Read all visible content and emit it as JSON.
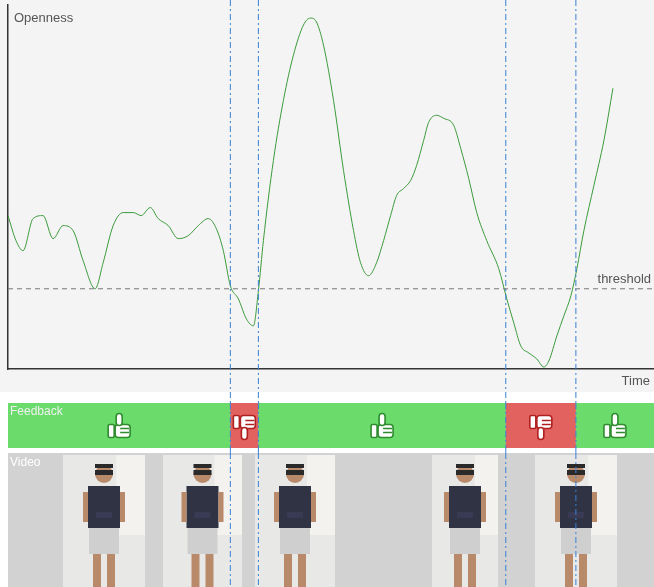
{
  "chart_data": {
    "type": "line",
    "y_label": "Openness",
    "x_label": "Time",
    "x": [
      0,
      8,
      15,
      25,
      35,
      45,
      55,
      65,
      75,
      87,
      95,
      105,
      115,
      125,
      133,
      142,
      150,
      160,
      170,
      180,
      190,
      200,
      208,
      215,
      222,
      230,
      238,
      245,
      250,
      255,
      265,
      275,
      285,
      295,
      302,
      308,
      315,
      325,
      335,
      345,
      352,
      360,
      368,
      375,
      382,
      388,
      395,
      402,
      408,
      415,
      420,
      428,
      435,
      445,
      452,
      460,
      468,
      478,
      490,
      498,
      505,
      512,
      520,
      528,
      535,
      540,
      548,
      555,
      562,
      568,
      575,
      585,
      595,
      604
    ],
    "series": [
      {
        "color": "#3c9b3c",
        "line_style": "solid",
        "values": [
          153,
          128,
          118,
          150,
          153,
          130,
          143,
          138,
          108,
          80,
          106,
          143,
          156,
          156,
          153,
          161,
          150,
          143,
          130,
          133,
          143,
          150,
          140,
          118,
          83,
          70,
          50,
          43,
          78,
          128,
          208,
          268,
          313,
          343,
          350,
          346,
          323,
          268,
          198,
          138,
          106,
          93,
          106,
          128,
          153,
          173,
          180,
          188,
          203,
          228,
          246,
          253,
          250,
          243,
          220,
          190,
          156,
          128,
          100,
          70,
          46,
          23,
          16,
          10,
          2,
          8,
          33,
          53,
          73,
          100,
          138,
          183,
          228,
          280
        ]
      }
    ],
    "xlim": [
      0,
      644
    ],
    "ylim": [
      0,
      363
    ],
    "grid": false,
    "tick_labels": false,
    "threshold": {
      "value": 80,
      "label": "threshold",
      "line_style": "dashed"
    },
    "markers_x": [
      222,
      250,
      497,
      567
    ]
  },
  "feedback": {
    "label": "Feedback"
  },
  "video": {
    "label": "Video"
  }
}
